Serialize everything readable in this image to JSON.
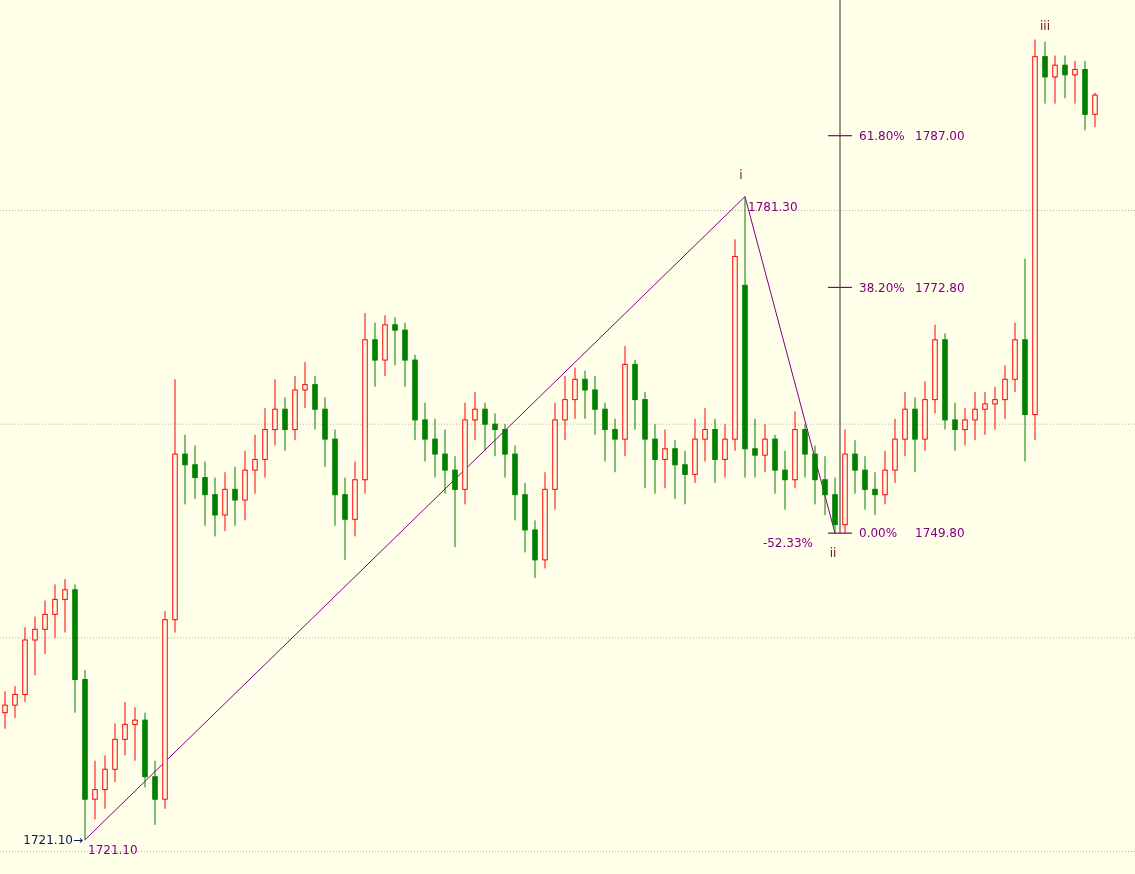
{
  "chart_data": {
    "type": "candlestick",
    "categories": [
      null,
      null,
      null,
      null,
      null,
      null,
      null,
      null,
      null,
      null,
      null,
      null,
      null,
      null,
      null,
      null,
      null,
      null,
      null,
      null,
      null,
      null,
      null,
      null,
      null,
      null,
      null,
      null,
      null,
      null,
      null,
      null,
      null,
      null,
      null,
      null,
      null,
      null,
      null,
      null,
      null,
      null,
      null,
      null,
      null,
      null,
      null,
      null,
      null,
      null,
      null,
      null,
      null,
      null,
      null,
      null,
      null,
      null,
      null,
      null,
      null,
      null,
      null,
      null,
      null,
      null,
      null,
      null,
      null,
      null,
      null,
      null,
      null,
      null,
      null,
      null,
      null,
      null,
      null,
      null,
      null,
      null,
      null,
      null,
      null,
      null,
      null,
      null,
      null,
      null,
      null,
      null,
      null,
      null,
      null,
      null,
      null,
      null,
      null,
      null,
      null,
      null,
      null,
      null,
      null,
      null,
      null,
      null,
      null,
      null
    ],
    "ohlc": [
      [
        1733.0,
        1735.0,
        1731.5,
        1733.7
      ],
      [
        1733.7,
        1735.5,
        1732.5,
        1734.7
      ],
      [
        1734.7,
        1741.0,
        1734.0,
        1739.8
      ],
      [
        1739.8,
        1742.0,
        1736.5,
        1740.8
      ],
      [
        1740.8,
        1743.5,
        1738.5,
        1742.2
      ],
      [
        1742.2,
        1745.0,
        1740.0,
        1743.6
      ],
      [
        1743.6,
        1745.5,
        1740.5,
        1744.5
      ],
      [
        1744.5,
        1745.0,
        1733.0,
        1736.1
      ],
      [
        1736.1,
        1737.0,
        1721.1,
        1724.9
      ],
      [
        1724.9,
        1728.5,
        1723.0,
        1725.8
      ],
      [
        1725.8,
        1729.0,
        1724.0,
        1727.7
      ],
      [
        1727.7,
        1732.0,
        1726.5,
        1730.5
      ],
      [
        1730.5,
        1734.0,
        1729.0,
        1731.9
      ],
      [
        1731.9,
        1733.5,
        1728.5,
        1732.3
      ],
      [
        1732.3,
        1733.0,
        1726.0,
        1727.0
      ],
      [
        1727.0,
        1728.5,
        1722.5,
        1724.9
      ],
      [
        1724.9,
        1742.5,
        1724.0,
        1741.7
      ],
      [
        1741.7,
        1764.2,
        1740.5,
        1757.2
      ],
      [
        1757.2,
        1759.0,
        1752.5,
        1756.2
      ],
      [
        1756.2,
        1758.0,
        1753.0,
        1755.0
      ],
      [
        1755.0,
        1756.5,
        1750.5,
        1753.4
      ],
      [
        1753.4,
        1755.0,
        1749.5,
        1751.5
      ],
      [
        1751.5,
        1755.5,
        1750.0,
        1753.9
      ],
      [
        1753.9,
        1756.0,
        1750.5,
        1752.9
      ],
      [
        1752.9,
        1757.5,
        1751.0,
        1755.7
      ],
      [
        1755.7,
        1759.0,
        1753.5,
        1756.7
      ],
      [
        1756.7,
        1761.5,
        1755.0,
        1759.5
      ],
      [
        1759.5,
        1764.2,
        1758.0,
        1761.4
      ],
      [
        1761.4,
        1762.5,
        1757.5,
        1759.5
      ],
      [
        1759.5,
        1764.5,
        1758.5,
        1763.2
      ],
      [
        1763.2,
        1765.8,
        1761.5,
        1763.7
      ],
      [
        1763.7,
        1764.5,
        1759.5,
        1761.4
      ],
      [
        1761.4,
        1762.5,
        1756.0,
        1758.6
      ],
      [
        1758.6,
        1759.5,
        1750.5,
        1753.4
      ],
      [
        1753.4,
        1755.0,
        1747.3,
        1751.1
      ],
      [
        1751.1,
        1756.5,
        1749.5,
        1754.8
      ],
      [
        1754.8,
        1770.4,
        1753.5,
        1767.9
      ],
      [
        1767.9,
        1769.5,
        1763.5,
        1766.0
      ],
      [
        1766.0,
        1770.2,
        1764.5,
        1769.3
      ],
      [
        1769.3,
        1770.0,
        1765.5,
        1768.8
      ],
      [
        1768.8,
        1769.5,
        1763.5,
        1766.0
      ],
      [
        1766.0,
        1766.5,
        1758.5,
        1760.4
      ],
      [
        1760.4,
        1762.0,
        1756.5,
        1758.6
      ],
      [
        1758.6,
        1760.5,
        1755.0,
        1757.2
      ],
      [
        1757.2,
        1759.5,
        1753.5,
        1755.7
      ],
      [
        1755.7,
        1757.0,
        1748.5,
        1753.9
      ],
      [
        1753.9,
        1762.0,
        1752.5,
        1760.4
      ],
      [
        1760.4,
        1763.0,
        1758.5,
        1761.4
      ],
      [
        1761.4,
        1762.0,
        1757.5,
        1760.0
      ],
      [
        1760.0,
        1761.0,
        1757.0,
        1759.5
      ],
      [
        1759.5,
        1760.0,
        1755.0,
        1757.2
      ],
      [
        1757.2,
        1758.0,
        1751.0,
        1753.4
      ],
      [
        1753.4,
        1754.5,
        1748.0,
        1750.1
      ],
      [
        1750.1,
        1751.0,
        1745.6,
        1747.3
      ],
      [
        1747.3,
        1755.5,
        1746.5,
        1753.9
      ],
      [
        1753.9,
        1762.0,
        1752.0,
        1760.4
      ],
      [
        1760.4,
        1764.5,
        1758.5,
        1762.3
      ],
      [
        1762.3,
        1765.3,
        1760.5,
        1764.2
      ],
      [
        1764.2,
        1765.0,
        1760.5,
        1763.2
      ],
      [
        1763.2,
        1764.5,
        1759.0,
        1761.4
      ],
      [
        1761.4,
        1762.0,
        1756.5,
        1759.5
      ],
      [
        1759.5,
        1760.5,
        1755.5,
        1758.6
      ],
      [
        1758.6,
        1767.3,
        1757.0,
        1765.6
      ],
      [
        1765.6,
        1766.0,
        1759.5,
        1762.3
      ],
      [
        1762.3,
        1763.0,
        1754.0,
        1758.6
      ],
      [
        1758.6,
        1760.0,
        1753.5,
        1756.7
      ],
      [
        1756.7,
        1759.5,
        1754.0,
        1757.7
      ],
      [
        1757.7,
        1758.5,
        1753.0,
        1756.2
      ],
      [
        1756.2,
        1757.5,
        1752.5,
        1755.3
      ],
      [
        1755.3,
        1760.5,
        1754.5,
        1758.6
      ],
      [
        1758.6,
        1761.5,
        1756.5,
        1759.5
      ],
      [
        1759.5,
        1760.5,
        1754.5,
        1756.7
      ],
      [
        1756.7,
        1760.0,
        1755.0,
        1758.6
      ],
      [
        1758.6,
        1777.3,
        1757.5,
        1775.7
      ],
      [
        1773.0,
        1781.3,
        1755.0,
        1757.7
      ],
      [
        1757.7,
        1760.5,
        1755.0,
        1757.1
      ],
      [
        1757.1,
        1760.0,
        1755.5,
        1758.6
      ],
      [
        1758.6,
        1759.0,
        1753.5,
        1755.7
      ],
      [
        1755.7,
        1757.5,
        1752.0,
        1754.8
      ],
      [
        1754.8,
        1761.2,
        1754.0,
        1759.5
      ],
      [
        1759.5,
        1760.0,
        1755.0,
        1757.2
      ],
      [
        1757.2,
        1758.0,
        1752.5,
        1754.8
      ],
      [
        1754.8,
        1757.0,
        1751.5,
        1753.4
      ],
      [
        1753.4,
        1755.0,
        1749.8,
        1750.6
      ],
      [
        1750.6,
        1759.5,
        1749.8,
        1757.2
      ],
      [
        1757.2,
        1758.5,
        1753.5,
        1755.7
      ],
      [
        1755.7,
        1757.0,
        1752.0,
        1753.9
      ],
      [
        1753.9,
        1755.5,
        1751.5,
        1753.4
      ],
      [
        1753.4,
        1757.5,
        1752.5,
        1755.7
      ],
      [
        1755.7,
        1760.5,
        1754.5,
        1758.6
      ],
      [
        1758.6,
        1763.0,
        1757.0,
        1761.4
      ],
      [
        1761.4,
        1762.5,
        1755.5,
        1758.6
      ],
      [
        1758.6,
        1764.0,
        1757.5,
        1762.3
      ],
      [
        1762.3,
        1769.3,
        1761.0,
        1767.9
      ],
      [
        1767.9,
        1768.5,
        1759.5,
        1760.4
      ],
      [
        1760.4,
        1762.0,
        1757.5,
        1759.5
      ],
      [
        1759.5,
        1761.5,
        1758.0,
        1760.4
      ],
      [
        1760.4,
        1763.0,
        1758.5,
        1761.4
      ],
      [
        1761.4,
        1763.0,
        1759.0,
        1761.9
      ],
      [
        1761.9,
        1763.5,
        1759.5,
        1762.3
      ],
      [
        1762.3,
        1765.5,
        1760.5,
        1764.2
      ],
      [
        1764.2,
        1769.5,
        1763.0,
        1767.9
      ],
      [
        1767.9,
        1775.5,
        1756.5,
        1760.9
      ],
      [
        1760.9,
        1796.0,
        1758.5,
        1794.4
      ],
      [
        1794.4,
        1795.8,
        1790.0,
        1792.5
      ],
      [
        1792.5,
        1794.5,
        1790.0,
        1793.6
      ],
      [
        1793.6,
        1794.5,
        1790.5,
        1792.7
      ],
      [
        1792.7,
        1794.0,
        1790.0,
        1793.2
      ],
      [
        1793.2,
        1794.0,
        1787.5,
        1789.0
      ],
      [
        1789.0,
        1791.0,
        1787.8,
        1790.8
      ]
    ],
    "series": [
      {
        "type": "line",
        "color": "#800080",
        "values": [
          null,
          null,
          null,
          null,
          null,
          null,
          null,
          null,
          1721.1,
          null,
          null,
          null,
          null,
          null,
          null,
          null,
          null,
          null,
          null,
          null,
          null,
          null,
          null,
          null,
          null,
          null,
          null,
          null,
          null,
          null,
          null,
          null,
          null,
          null,
          null,
          null,
          null,
          null,
          null,
          null,
          null,
          null,
          null,
          null,
          null,
          null,
          null,
          null,
          null,
          null,
          null,
          null,
          null,
          null,
          null,
          null,
          null,
          null,
          null,
          null,
          null,
          null,
          null,
          null,
          null,
          null,
          null,
          null,
          null,
          null,
          null,
          null,
          null,
          null,
          1781.3,
          null,
          null,
          null,
          null,
          null,
          null,
          null,
          null,
          1749.8,
          null,
          null,
          null,
          null,
          null,
          null,
          null,
          null,
          null,
          null,
          null,
          null,
          null,
          null,
          null,
          null,
          null,
          null,
          null,
          null,
          null,
          null,
          null,
          null,
          null,
          null
        ],
        "value_labels": [
          null,
          null,
          null,
          null,
          null,
          null,
          null,
          null,
          "1721.10",
          null,
          null,
          null,
          null,
          null,
          null,
          null,
          null,
          null,
          null,
          null,
          null,
          null,
          null,
          null,
          null,
          null,
          null,
          null,
          null,
          null,
          null,
          null,
          null,
          null,
          null,
          null,
          null,
          null,
          null,
          null,
          null,
          null,
          null,
          null,
          null,
          null,
          null,
          null,
          null,
          null,
          null,
          null,
          null,
          null,
          null,
          null,
          null,
          null,
          null,
          null,
          null,
          null,
          null,
          null,
          null,
          null,
          null,
          null,
          null,
          null,
          null,
          null,
          null,
          null,
          "1781.30",
          null,
          null,
          null,
          null,
          null,
          null,
          null,
          null,
          null,
          null,
          null,
          null,
          null,
          null,
          null,
          null,
          null,
          null,
          null,
          null,
          null,
          null,
          null,
          null,
          null,
          null,
          null,
          null,
          null,
          null,
          null,
          null,
          null,
          null,
          null
        ]
      }
    ],
    "ylim": [
      1717.9,
      1799.7
    ],
    "yticks": [
      {
        "value": 1720,
        "label": null
      },
      {
        "value": 1740,
        "label": null
      },
      {
        "value": 1760,
        "label": null
      },
      {
        "value": 1780,
        "label": null
      },
      {
        "value": 1787.0,
        "label": "1787.00"
      },
      {
        "value": 1772.8,
        "label": "1772.80"
      },
      {
        "value": 1749.8,
        "label": "1749.80"
      }
    ],
    "grid": "y",
    "tick_labels": "y",
    "annotations": [
      "1721.10→",
      "i",
      "-52.33%",
      "ii",
      "iii",
      "61.80%",
      "38.20%",
      "0.00%"
    ]
  }
}
